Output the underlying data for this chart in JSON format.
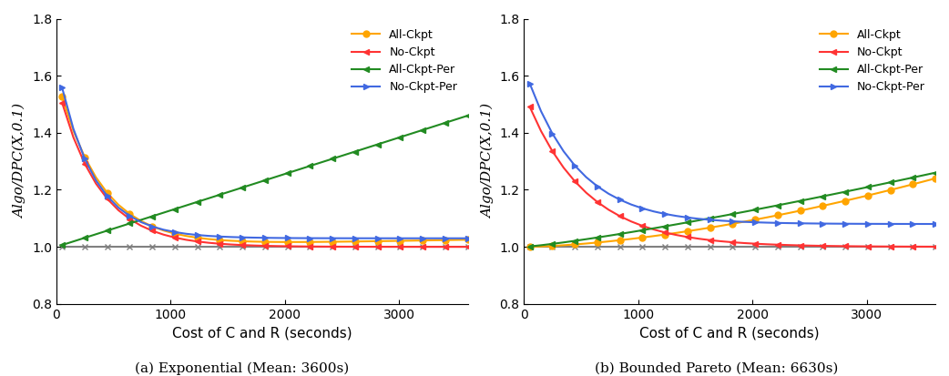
{
  "x_max": 3600,
  "x_ticks": [
    0,
    1000,
    2000,
    3000
  ],
  "ylim": [
    0.8,
    1.8
  ],
  "yticks": [
    0.8,
    1.0,
    1.2,
    1.4,
    1.6,
    1.8
  ],
  "ylabel": "Algo/DPC(X,0.1)",
  "xlabel": "Cost of C and R (seconds)",
  "caption_a": "(a) Exponential (Mean: 3600s)",
  "caption_b": "(b) Bounded Pareto (Mean: 6630s)",
  "legend_labels": [
    "All-Ckpt",
    "No-Ckpt",
    "All-Ckpt-Per",
    "No-Ckpt-Per"
  ],
  "colors": {
    "all_ckpt": "#FFA500",
    "no_ckpt": "#FF3333",
    "all_ckpt_per": "#228B22",
    "no_ckpt_per": "#4169E1",
    "dpc": "#808080"
  },
  "mean_exp": 3600,
  "mean_bp": 6630,
  "n_points": 37
}
